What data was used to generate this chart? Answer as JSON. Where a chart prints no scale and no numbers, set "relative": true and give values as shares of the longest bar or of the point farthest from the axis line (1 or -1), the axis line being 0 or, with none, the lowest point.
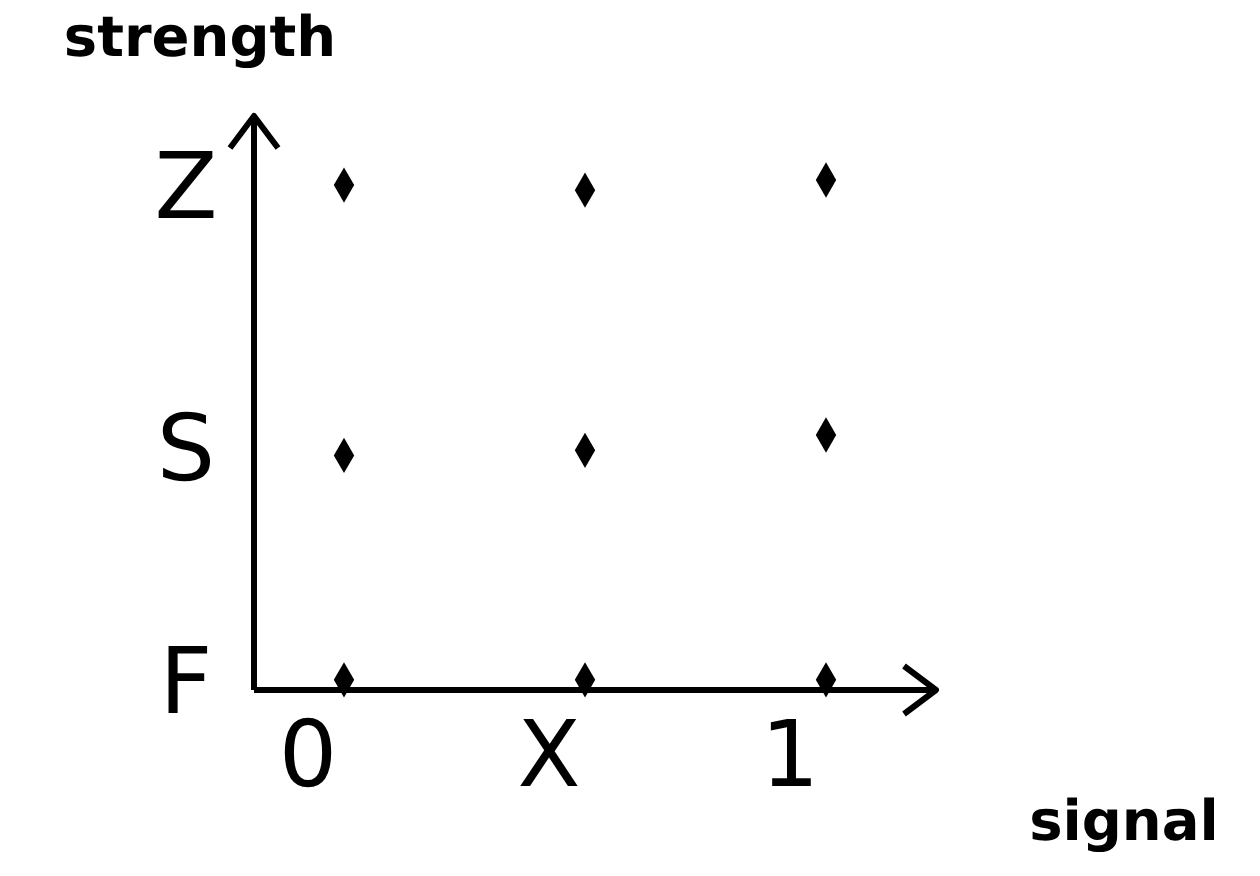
{
  "chart_data": {
    "type": "scatter",
    "xlabel": "signal",
    "ylabel": "strength",
    "categories": [
      "0",
      "X",
      "1"
    ],
    "relative": true,
    "series": [
      {
        "color": "#000000",
        "values": [
          0.02,
          0.02,
          0.02
        ]
      },
      {
        "color": "#000000",
        "values": [
          0.46,
          0.47,
          0.5
        ]
      },
      {
        "color": "#000000",
        "values": [
          0.99,
          0.98,
          1
        ]
      }
    ],
    "annotations": [
      "F",
      "S",
      "Z"
    ],
    "marker": "diamond"
  }
}
